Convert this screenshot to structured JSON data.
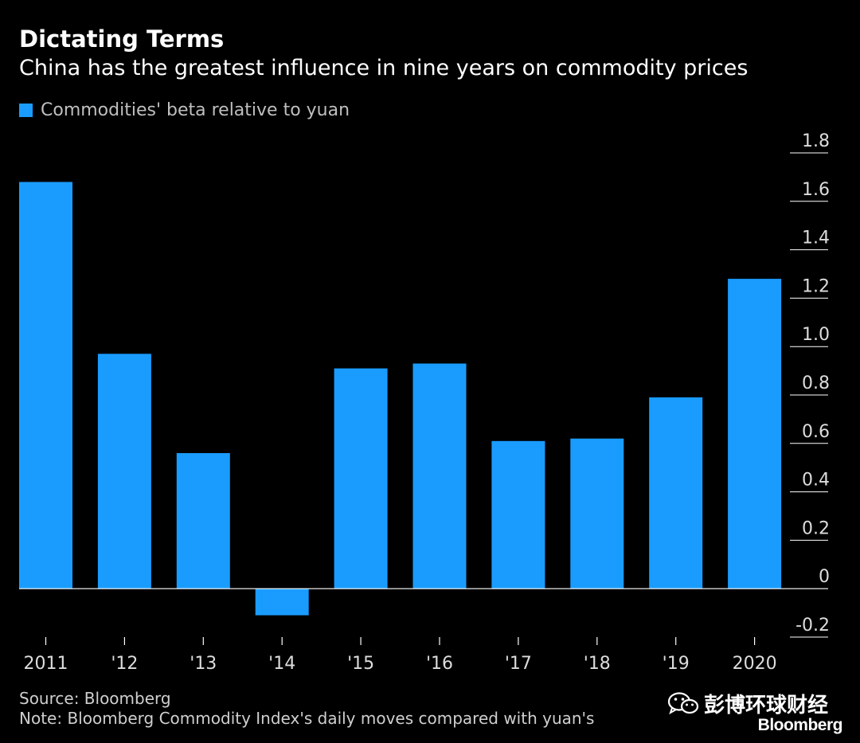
{
  "header": {
    "title": "Dictating Terms",
    "subtitle": "China has the greatest influence in nine years on commodity prices"
  },
  "legend": {
    "label": "Commodities' beta relative to yuan"
  },
  "footer": {
    "source": "Source: Bloomberg",
    "note": "Note: Bloomberg Commodity Index's daily moves compared with yuan's"
  },
  "watermark": {
    "text": "彭博环球财经",
    "brand": "Bloomberg"
  },
  "colors": {
    "bar": "#1a9cff",
    "background": "#000000",
    "gridline": "#ffffff"
  },
  "chart_data": {
    "type": "bar",
    "categories": [
      "2011",
      "'12",
      "'13",
      "'14",
      "'15",
      "'16",
      "'17",
      "'18",
      "'19",
      "2020"
    ],
    "series": [
      {
        "name": "Commodities' beta relative to yuan",
        "values": [
          1.68,
          0.97,
          0.56,
          -0.11,
          0.91,
          0.93,
          0.61,
          0.62,
          0.79,
          1.28
        ]
      }
    ],
    "y_ticks": [
      "1.8",
      "1.6",
      "1.4",
      "1.2",
      "1.0",
      "0.8",
      "0.6",
      "0.4",
      "0.2",
      "0",
      "-0.2"
    ],
    "y_tick_values": [
      1.8,
      1.6,
      1.4,
      1.2,
      1.0,
      0.8,
      0.6,
      0.4,
      0.2,
      0,
      -0.2
    ],
    "ylim": [
      -0.2,
      1.8
    ],
    "title": "Dictating Terms",
    "xlabel": "",
    "ylabel": "",
    "grid": false,
    "legend_position": "top-left",
    "y_axis_side": "right"
  }
}
